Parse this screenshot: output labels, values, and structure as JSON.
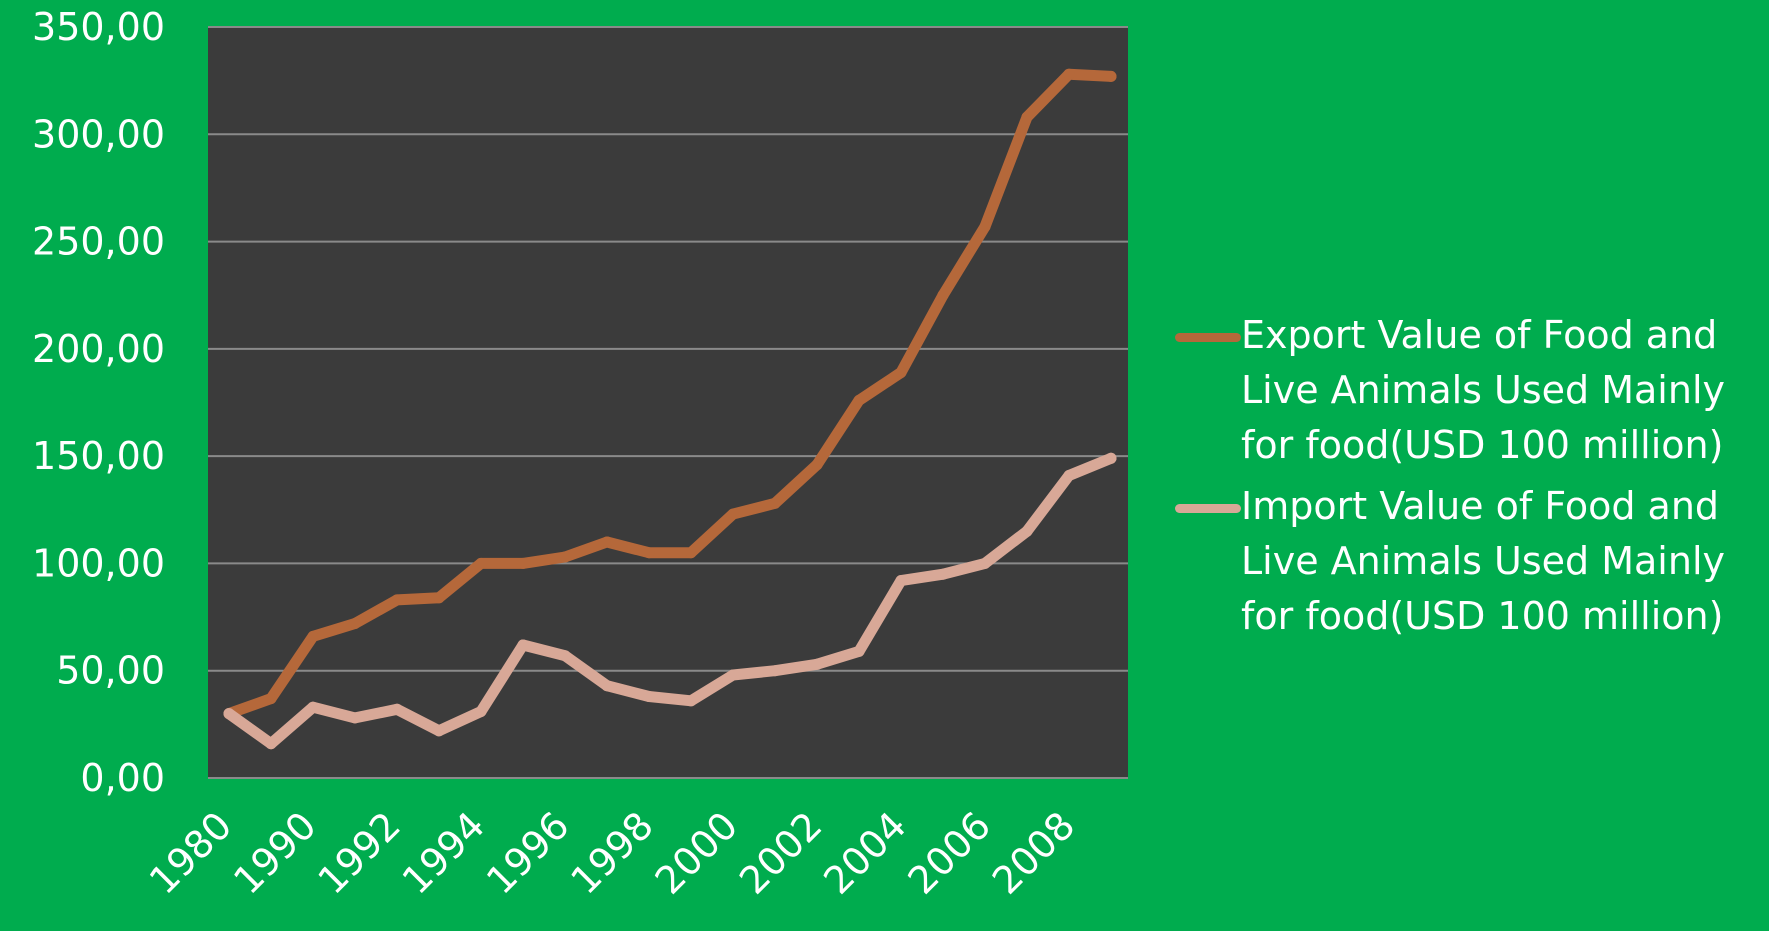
{
  "chart_data": {
    "type": "line",
    "title": "",
    "xlabel": "",
    "ylabel": "",
    "x": [
      "1980",
      "1985",
      "1990",
      "1991",
      "1992",
      "1993",
      "1994",
      "1995",
      "1996",
      "1997",
      "1998",
      "1999",
      "2000",
      "2001",
      "2002",
      "2003",
      "2004",
      "2005",
      "2006",
      "2007",
      "2008",
      "2009"
    ],
    "x_tick_labels": [
      "1980",
      "1990",
      "1992",
      "1994",
      "1996",
      "1998",
      "2000",
      "2002",
      "2004",
      "2006",
      "2008"
    ],
    "y_tick_labels": [
      "0,00",
      "50,00",
      "100,00",
      "150,00",
      "200,00",
      "250,00",
      "300,00",
      "350,00"
    ],
    "ylim": [
      0,
      350
    ],
    "grid": true,
    "legend_position": "right",
    "series": [
      {
        "name": "Export Value of Food and Live Animals Used Mainly for food(USD 100 million)",
        "color": "#b5683a",
        "values": [
          30,
          37,
          66,
          72,
          83,
          84,
          100,
          100,
          103,
          110,
          105,
          105,
          123,
          128,
          146,
          176,
          189,
          225,
          257,
          308,
          328,
          327
        ]
      },
      {
        "name": "Import Value of Food and Live Animals Used Mainly for food(USD 100 million)",
        "color": "#d8a897",
        "values": [
          30,
          16,
          33,
          28,
          32,
          22,
          31,
          62,
          57,
          43,
          38,
          36,
          48,
          50,
          53,
          59,
          92,
          95,
          100,
          115,
          141,
          149
        ]
      }
    ]
  },
  "legend": {
    "items": [
      {
        "label": "Export Value of Food and\nLive Animals Used Mainly\nfor food(USD 100 million)",
        "color": "#b5683a"
      },
      {
        "label": "Import Value of Food and\nLive Animals Used Mainly\nfor food(USD 100 million)",
        "color": "#d8a897"
      }
    ]
  },
  "colors": {
    "background": "#00ac4e",
    "plot_area": "#3b3b3b",
    "gridline": "#8a8a8a",
    "text": "#ffffff"
  }
}
